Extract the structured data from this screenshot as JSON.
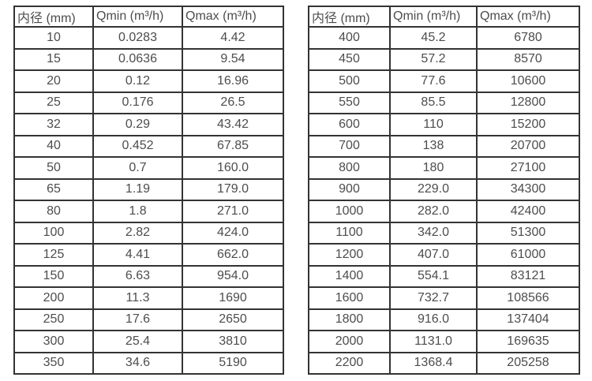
{
  "page": {
    "background_color": "#ffffff",
    "border_color": "#333333",
    "text_color": "#4d4d4d"
  },
  "tables": [
    {
      "name": "flow-table-small-diameters",
      "headers": [
        "内径 (mm)",
        "Qmin (m³/h)",
        "Qmax (m³/h)"
      ],
      "rows": [
        [
          "10",
          "0.0283",
          "4.42"
        ],
        [
          "15",
          "0.0636",
          "9.54"
        ],
        [
          "20",
          "0.12",
          "16.96"
        ],
        [
          "25",
          "0.176",
          "26.5"
        ],
        [
          "32",
          "0.29",
          "43.42"
        ],
        [
          "40",
          "0.452",
          "67.85"
        ],
        [
          "50",
          "0.7",
          "160.0"
        ],
        [
          "65",
          "1.19",
          "179.0"
        ],
        [
          "80",
          "1.8",
          "271.0"
        ],
        [
          "100",
          "2.82",
          "424.0"
        ],
        [
          "125",
          "4.41",
          "662.0"
        ],
        [
          "150",
          "6.63",
          "954.0"
        ],
        [
          "200",
          "11.3",
          "1690"
        ],
        [
          "250",
          "17.6",
          "2650"
        ],
        [
          "300",
          "25.4",
          "3810"
        ],
        [
          "350",
          "34.6",
          "5190"
        ]
      ]
    },
    {
      "name": "flow-table-large-diameters",
      "headers": [
        "内径 (mm)",
        "Qmin (m³/h)",
        "Qmax (m³/h)"
      ],
      "rows": [
        [
          "400",
          "45.2",
          "6780"
        ],
        [
          "450",
          "57.2",
          "8570"
        ],
        [
          "500",
          "77.6",
          "10600"
        ],
        [
          "550",
          "85.5",
          "12800"
        ],
        [
          "600",
          "110",
          "15200"
        ],
        [
          "700",
          "138",
          "20700"
        ],
        [
          "800",
          "180",
          "27100"
        ],
        [
          "900",
          "229.0",
          "34300"
        ],
        [
          "1000",
          "282.0",
          "42400"
        ],
        [
          "1100",
          "342.0",
          "51300"
        ],
        [
          "1200",
          "407.0",
          "61000"
        ],
        [
          "1400",
          "554.1",
          "83121"
        ],
        [
          "1600",
          "732.7",
          "108566"
        ],
        [
          "1800",
          "916.0",
          "137404"
        ],
        [
          "2000",
          "1131.0",
          "169635"
        ],
        [
          "2200",
          "1368.4",
          "205258"
        ]
      ]
    }
  ]
}
